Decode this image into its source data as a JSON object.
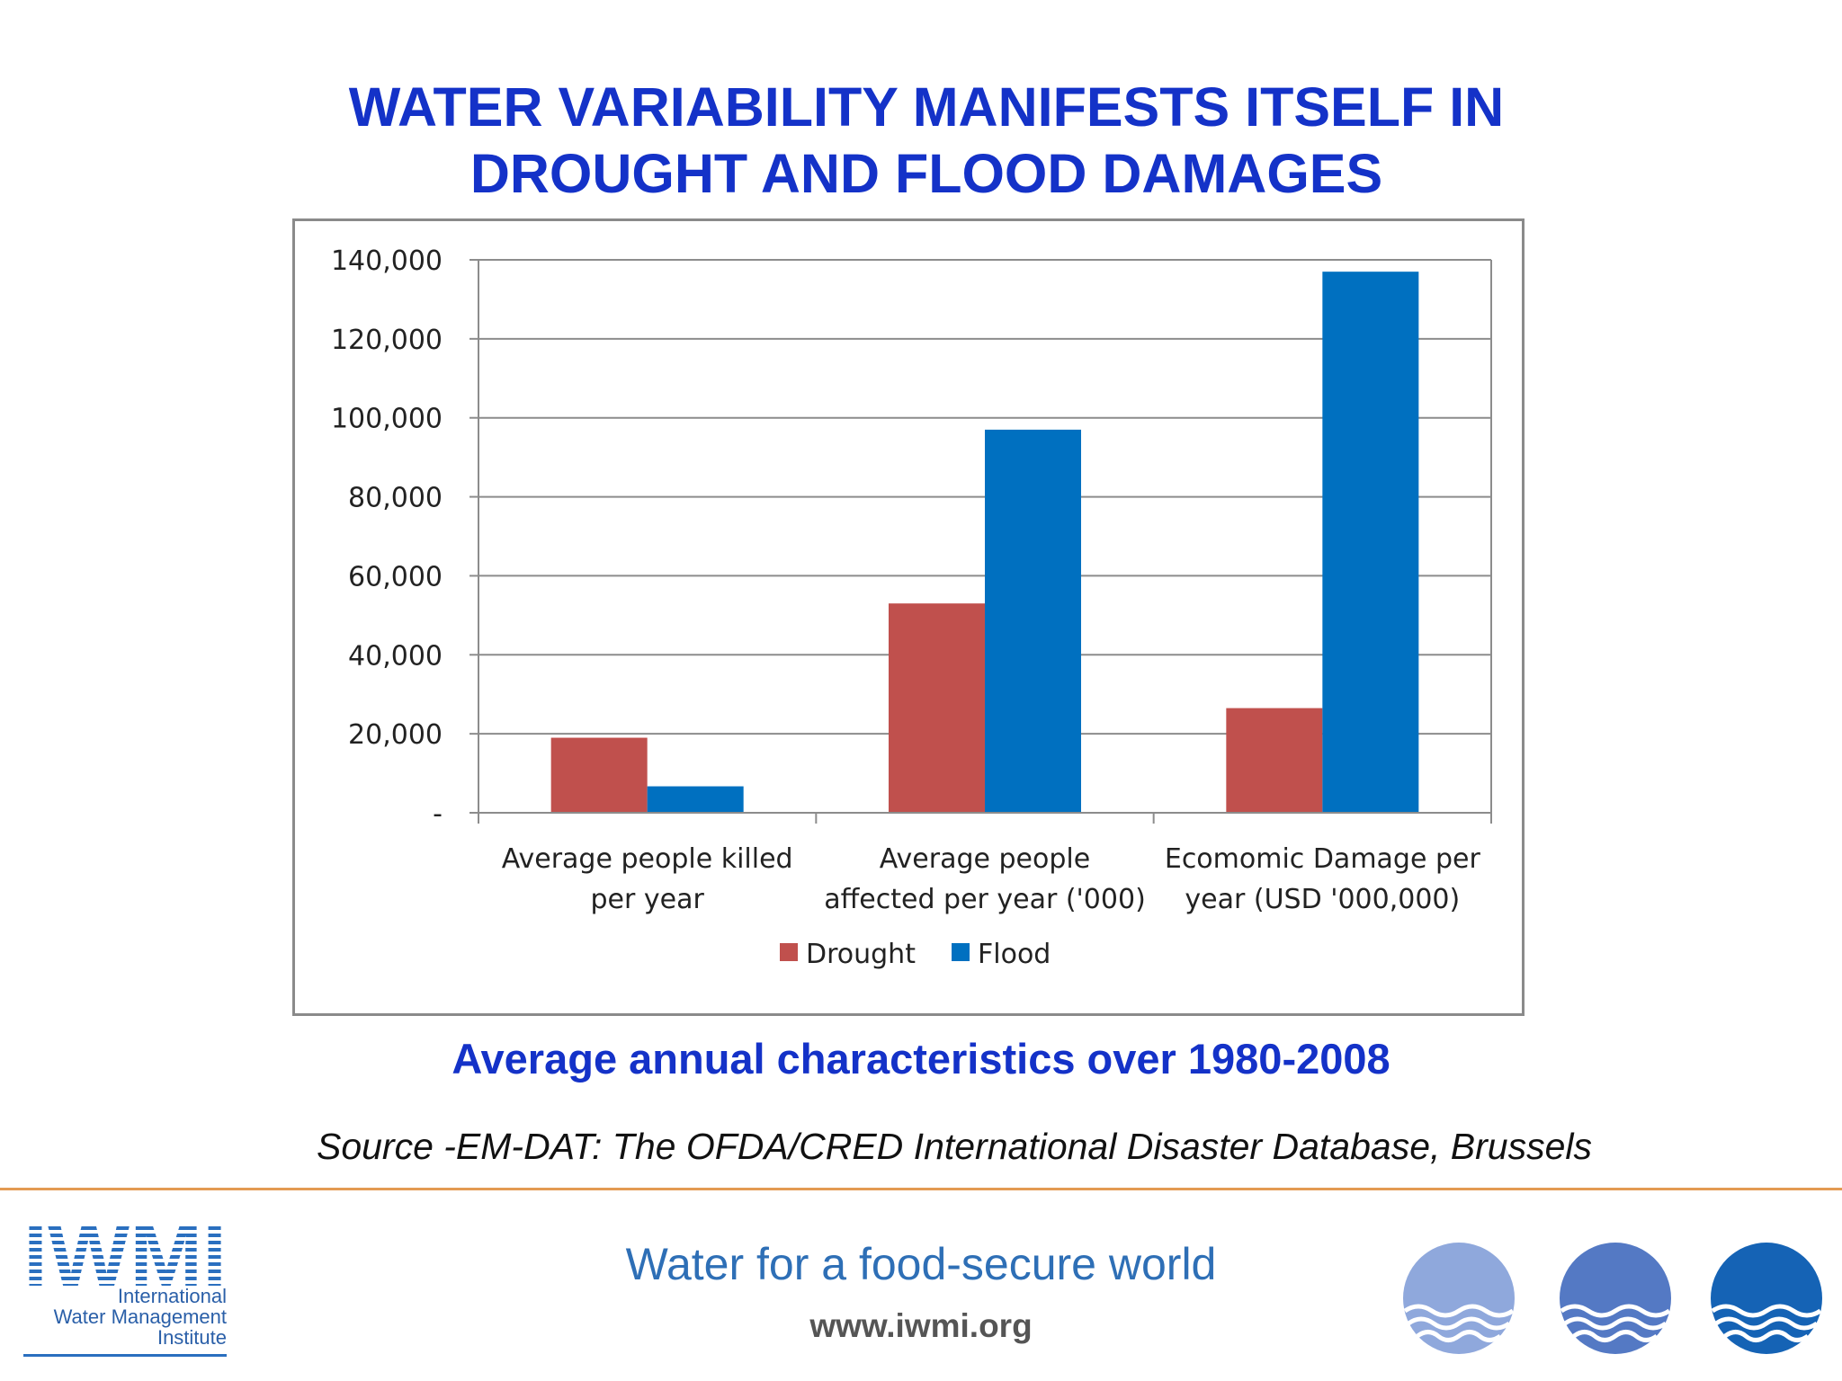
{
  "slide": {
    "title_lines": [
      "WATER VARIABILITY MANIFESTS ITSELF IN",
      "DROUGHT AND FLOOD DAMAGES"
    ],
    "caption": "Average annual characteristics over 1980-2008",
    "source": "Source -EM-DAT: The OFDA/CRED International Disaster Database, Brussels",
    "tagline": "Water for a food-secure world",
    "url": "www.iwmi.org",
    "logo": {
      "wordmark": "IWMI",
      "name_lines": [
        "International",
        "Water Management",
        "Institute"
      ]
    },
    "icons": [
      "wave-globe-icon-light",
      "wave-globe-icon-medium",
      "wave-globe-icon-dark"
    ]
  },
  "chart_data": {
    "type": "bar",
    "categories": [
      [
        "Average people killed",
        "per year"
      ],
      [
        "Average people",
        "affected per year ('000)"
      ],
      [
        "Ecomomic Damage per",
        "year (USD '000,000)"
      ]
    ],
    "series": [
      {
        "name": "Drought",
        "color": "#c0504d",
        "values": [
          19000,
          53000,
          26500
        ]
      },
      {
        "name": "Flood",
        "color": "#0070c0",
        "values": [
          6700,
          97000,
          137000
        ]
      }
    ],
    "ylim": [
      0,
      140000
    ],
    "yticks": [
      0,
      20000,
      40000,
      60000,
      80000,
      100000,
      120000,
      140000
    ],
    "ytick_labels": [
      "-",
      "20,000",
      "40,000",
      "60,000",
      "80,000",
      "100,000",
      "120,000",
      "140,000"
    ],
    "grid": true,
    "legend": "bottom",
    "xlabel": "",
    "ylabel": ""
  }
}
